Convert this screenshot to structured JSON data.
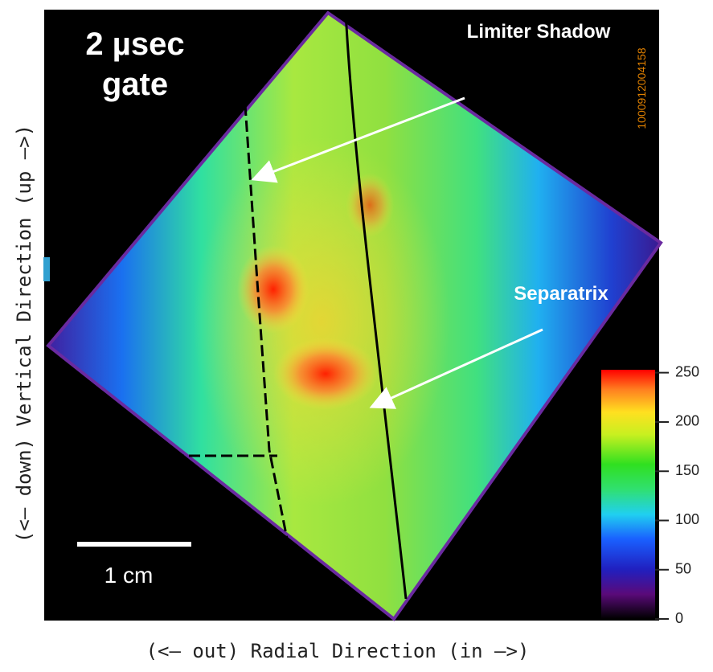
{
  "image": {
    "label": "2 µsec gate",
    "annotations": [
      "Limiter Shadow",
      "Separatrix"
    ],
    "scale_bar": "1 cm",
    "shot_id": "1000912004158",
    "x_axis_label": "(<— out) Radial Direction (in —>)",
    "y_axis_label": "(<— down) Vertical Direction (up —>)",
    "colorbar": {
      "lim": [
        0,
        253
      ],
      "ticks": [
        0,
        50,
        100,
        150,
        200,
        250
      ]
    }
  }
}
